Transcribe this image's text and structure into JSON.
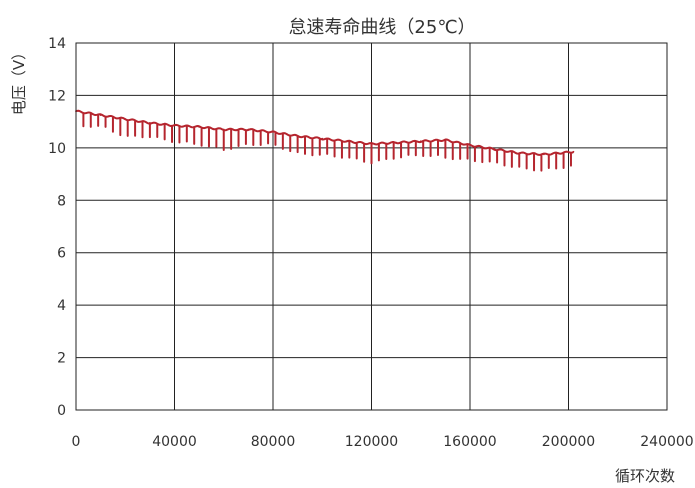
{
  "chart_data": {
    "type": "line",
    "title": "怠速寿命曲线（25℃）",
    "xlabel": "循环次数",
    "ylabel": "电压（V）",
    "xlim": [
      0,
      240000
    ],
    "ylim": [
      0,
      14
    ],
    "x_ticks": [
      0,
      40000,
      80000,
      120000,
      160000,
      200000,
      240000
    ],
    "y_ticks": [
      0,
      2,
      4,
      6,
      8,
      10,
      12,
      14
    ],
    "x_tick_labels": [
      "0",
      "40000",
      "80000",
      "120000",
      "160000",
      "200000",
      "240000"
    ],
    "y_tick_labels": [
      "0",
      "2",
      "4",
      "6",
      "8",
      "10",
      "12",
      "14"
    ],
    "grid": true,
    "line_color": "#b5252e",
    "series": [
      {
        "x": [
          0,
          10000,
          20000,
          30000,
          40000,
          50000,
          60000,
          70000,
          80000,
          90000,
          100000,
          110000,
          120000,
          130000,
          140000,
          150000,
          160000,
          170000,
          180000,
          190000,
          196000,
          202000
        ],
        "y": [
          11.4,
          11.25,
          11.1,
          10.95,
          10.85,
          10.8,
          10.7,
          10.7,
          10.6,
          10.45,
          10.35,
          10.25,
          10.15,
          10.2,
          10.25,
          10.3,
          10.1,
          9.95,
          9.8,
          9.75,
          9.8,
          9.85
        ],
        "dip_y": [
          10.9,
          10.9,
          10.5,
          10.5,
          10.3,
          10.2,
          10.0,
          10.2,
          10.2,
          9.85,
          9.8,
          9.7,
          9.5,
          9.7,
          9.8,
          9.7,
          9.6,
          9.5,
          9.3,
          9.2,
          9.3,
          9.4
        ]
      }
    ]
  }
}
